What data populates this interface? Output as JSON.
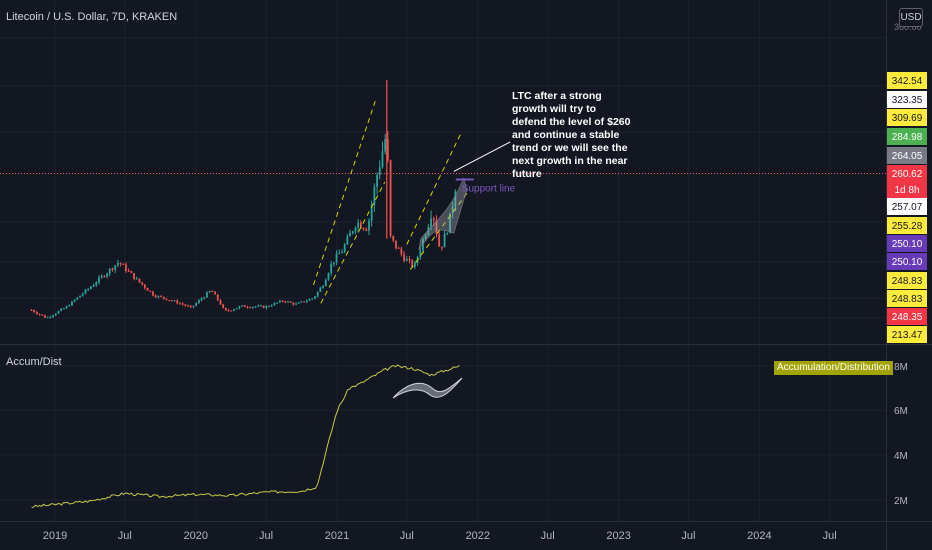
{
  "header": {
    "title": "Litecoin / U.S. Dollar, 7D, KRAKEN",
    "currency_button": "USD",
    "top_scale_value": "360.00"
  },
  "chart_data": [
    {
      "type": "candlestick",
      "symbol": "Litecoin / U.S. Dollar",
      "interval": "7D",
      "exchange": "KRAKEN",
      "x_ticks": [
        "2019",
        "Jul",
        "2020",
        "Jul",
        "2021",
        "Jul",
        "2022",
        "Jul",
        "2023",
        "Jul",
        "2024",
        "Jul"
      ],
      "price_path": [
        [
          "2018-11-01",
          40
        ],
        [
          "2018-12-10",
          30
        ],
        [
          "2019-02-01",
          44
        ],
        [
          "2019-04-01",
          80
        ],
        [
          "2019-06-15",
          130
        ],
        [
          "2019-08-01",
          95
        ],
        [
          "2019-09-15",
          65
        ],
        [
          "2019-11-01",
          55
        ],
        [
          "2019-12-20",
          42
        ],
        [
          "2020-02-10",
          75
        ],
        [
          "2020-03-15",
          38
        ],
        [
          "2020-05-01",
          45
        ],
        [
          "2020-07-01",
          44
        ],
        [
          "2020-08-15",
          55
        ],
        [
          "2020-09-15",
          48
        ],
        [
          "2020-11-01",
          60
        ],
        [
          "2020-11-25",
          85
        ],
        [
          "2020-12-20",
          130
        ],
        [
          "2021-01-15",
          150
        ],
        [
          "2021-02-20",
          200
        ],
        [
          "2021-03-20",
          190
        ],
        [
          "2021-04-15",
          260
        ],
        [
          "2021-05-10",
          310
        ],
        [
          "2021-05-20",
          170
        ],
        [
          "2021-06-20",
          140
        ],
        [
          "2021-07-20",
          120
        ],
        [
          "2021-08-15",
          175
        ],
        [
          "2021-09-05",
          220
        ],
        [
          "2021-09-25",
          150
        ],
        [
          "2021-10-20",
          200
        ],
        [
          "2021-11-10",
          265
        ]
      ],
      "price_labels": [
        {
          "text": "342.54",
          "color": "#ffeb3b"
        },
        {
          "text": "323.35",
          "color": "#ffffff"
        },
        {
          "text": "309.69",
          "color": "#ffeb3b"
        },
        {
          "text": "284.98",
          "color": "#4caf50"
        },
        {
          "text": "264.05",
          "color": "#787b86"
        },
        {
          "text": "260.62",
          "color": "#f23645"
        },
        {
          "text": "1d 8h",
          "color": "#f23645"
        },
        {
          "text": "257.07",
          "color": "#ffffff"
        },
        {
          "text": "255.28",
          "color": "#ffeb3b"
        },
        {
          "text": "250.10",
          "color": "#673ab7"
        },
        {
          "text": "250.10",
          "color": "#673ab7"
        },
        {
          "text": "248.83",
          "color": "#ffeb3b"
        },
        {
          "text": "248.83",
          "color": "#ffeb3b"
        },
        {
          "text": "248.35",
          "color": "#f23645"
        },
        {
          "text": "213.47",
          "color": "#ffeb3b"
        }
      ],
      "current_price": 260.62,
      "annotations": {
        "note": "LTC after a strong growth will try to defend the level of $260 and continue a stable trend or we will see the next growth in the near future",
        "support_label": "Support line"
      },
      "colors": {
        "up": "#26a69a",
        "down": "#ef5350",
        "channel": "#d4d400",
        "support": "#7e57c2",
        "price_line": "#ef5350"
      }
    },
    {
      "type": "line",
      "name": "Accum/Dist",
      "badge": "Accumulation/Distribution",
      "y_ticks": [
        "8M",
        "6M",
        "4M",
        "2M"
      ],
      "series": [
        [
          "2018-11-01",
          1.7
        ],
        [
          "2019-01-01",
          1.8
        ],
        [
          "2019-04-01",
          1.95
        ],
        [
          "2019-07-01",
          2.3
        ],
        [
          "2019-10-01",
          2.15
        ],
        [
          "2020-01-01",
          2.25
        ],
        [
          "2020-04-01",
          2.2
        ],
        [
          "2020-07-01",
          2.35
        ],
        [
          "2020-10-01",
          2.4
        ],
        [
          "2020-11-10",
          2.6
        ],
        [
          "2020-12-01",
          4.0
        ],
        [
          "2021-01-01",
          6.0
        ],
        [
          "2021-02-01",
          7.0
        ],
        [
          "2021-03-01",
          7.2
        ],
        [
          "2021-04-01",
          7.5
        ],
        [
          "2021-05-01",
          7.8
        ],
        [
          "2021-06-01",
          8.0
        ],
        [
          "2021-07-15",
          7.9
        ],
        [
          "2021-09-01",
          7.6
        ],
        [
          "2021-11-15",
          8.0
        ]
      ],
      "color": "#c9c94a"
    }
  ]
}
